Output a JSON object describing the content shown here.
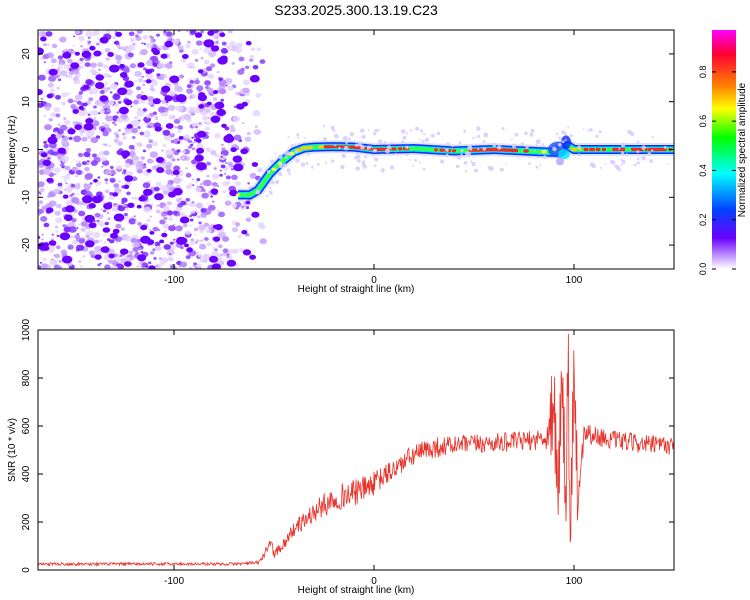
{
  "figure_title": "S233.2025.300.13.19.C23",
  "colors": {
    "line": "#e8322a",
    "axis": "#000000",
    "noise": "#7b2cff",
    "colorbar": [
      "#ff00ff",
      "#ff0033",
      "#ff8800",
      "#ffff00",
      "#00ff00",
      "#00ffff",
      "#0044ff",
      "#6a00ff",
      "#ffffff"
    ]
  },
  "chart_data": [
    {
      "type": "heatmap",
      "name": "spectrogram",
      "xlabel": "Height of straight line (km)",
      "ylabel": "Frequency (Hz)",
      "xlim": [
        -168,
        150
      ],
      "ylim": [
        -25,
        25
      ],
      "xticks": [
        {
          "v": -100,
          "label": "-100"
        },
        {
          "v": 0,
          "label": "0"
        },
        {
          "v": 100,
          "label": "100"
        }
      ],
      "yticks": [
        {
          "v": -20,
          "label": "-20"
        },
        {
          "v": -10,
          "label": "-10"
        },
        {
          "v": 0,
          "label": "0"
        },
        {
          "v": 10,
          "label": "10"
        },
        {
          "v": 20,
          "label": "20"
        }
      ],
      "noise_region_x": [
        -168,
        -55
      ],
      "ridge": {
        "x": [
          -68,
          -62,
          -58,
          -52,
          -46,
          -40,
          -35,
          -30,
          -20,
          -10,
          0,
          20,
          40,
          60,
          80,
          90,
          97,
          100,
          110,
          130,
          150
        ],
        "freq": [
          -9.5,
          -9.5,
          -8.5,
          -5,
          -2.5,
          -0.5,
          0.3,
          0.5,
          0.6,
          0.5,
          0.0,
          0.2,
          -0.3,
          0.0,
          -0.4,
          -0.6,
          0.8,
          0.0,
          0.0,
          0.0,
          0.0
        ],
        "amplitude": [
          0.4,
          0.5,
          0.55,
          0.45,
          0.5,
          0.55,
          0.6,
          0.7,
          0.8,
          0.9,
          0.9,
          0.85,
          0.8,
          0.8,
          0.75,
          0.3,
          0.2,
          0.7,
          0.8,
          0.8,
          0.8
        ]
      },
      "colorbar": {
        "label": "Normalized spectral amplitude",
        "range": [
          0,
          0.97
        ],
        "ticks": [
          {
            "v": 0.0,
            "label": "0.0"
          },
          {
            "v": 0.2,
            "label": "0.2"
          },
          {
            "v": 0.4,
            "label": "0.4"
          },
          {
            "v": 0.6,
            "label": "0.6"
          },
          {
            "v": 0.8,
            "label": "0.8"
          }
        ]
      }
    },
    {
      "type": "line",
      "name": "snr",
      "xlabel": "Height of straight line (km)",
      "ylabel": "SNR (10 * v/v)",
      "xlim": [
        -168,
        150
      ],
      "ylim": [
        0,
        1000
      ],
      "xticks": [
        {
          "v": -100,
          "label": "-100"
        },
        {
          "v": 0,
          "label": "0"
        },
        {
          "v": 100,
          "label": "100"
        }
      ],
      "yticks": [
        {
          "v": 0,
          "label": "0"
        },
        {
          "v": 200,
          "label": "200"
        },
        {
          "v": 400,
          "label": "400"
        },
        {
          "v": 600,
          "label": "600"
        },
        {
          "v": 800,
          "label": "800"
        },
        {
          "v": 1000,
          "label": "1000"
        }
      ],
      "series": [
        {
          "name": "SNR",
          "x": [
            -168,
            -100,
            -70,
            -58,
            -55,
            -52,
            -50,
            -45,
            -40,
            -30,
            -20,
            -10,
            0,
            10,
            20,
            30,
            40,
            60,
            80,
            87,
            90,
            92,
            94,
            96,
            97,
            98,
            100,
            102,
            105,
            110,
            120,
            130,
            140,
            150
          ],
          "y": [
            25,
            25,
            25,
            30,
            60,
            120,
            70,
            110,
            170,
            240,
            300,
            320,
            360,
            420,
            480,
            510,
            520,
            530,
            540,
            560,
            680,
            300,
            850,
            200,
            1000,
            70,
            820,
            300,
            580,
            560,
            540,
            530,
            520,
            520
          ],
          "noise": [
            6,
            6,
            6,
            8,
            15,
            20,
            20,
            25,
            30,
            45,
            55,
            55,
            50,
            45,
            45,
            45,
            40,
            40,
            40,
            60,
            80,
            80,
            80,
            80,
            80,
            80,
            80,
            70,
            60,
            40,
            40,
            40,
            40,
            40
          ]
        }
      ]
    }
  ]
}
